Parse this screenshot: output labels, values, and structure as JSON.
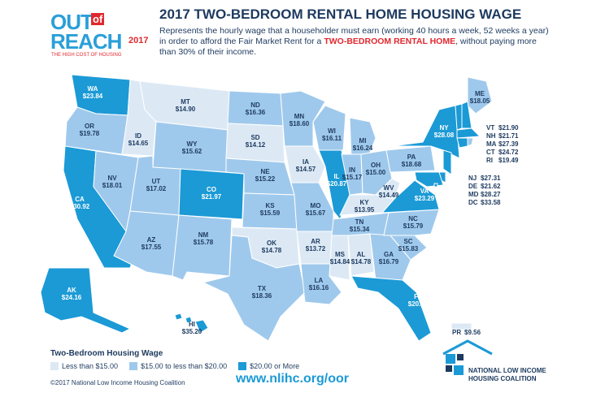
{
  "header": {
    "logo_out": "OUT",
    "logo_of": "of",
    "logo_reach": "REACH",
    "logo_year": "2017",
    "logo_tagline": "THE HIGH COST OF HOUSING",
    "title": "2017 TWO-BEDROOM RENTAL HOME HOUSING WAGE",
    "subtitle_start": "Represents the hourly wage that a householder must earn (working 40 hours a week, 52 weeks a year) in order to afford the Fair Market Rent for a ",
    "subtitle_emphasis": "TWO-BEDROOM RENTAL HOME",
    "subtitle_end": ", without paying more than 30% of their income."
  },
  "states": [
    {
      "abbr": "WA",
      "wage": "$23.84",
      "color": "#1b9ad6"
    },
    {
      "abbr": "OR",
      "wage": "$19.78",
      "color": "#9fc9ec"
    },
    {
      "abbr": "CA",
      "wage": "$30.92",
      "color": "#1b9ad6"
    },
    {
      "abbr": "NV",
      "wage": "$18.01",
      "color": "#9fc9ec"
    },
    {
      "abbr": "ID",
      "wage": "$14.65",
      "color": "#dce9f5"
    },
    {
      "abbr": "MT",
      "wage": "$14.90",
      "color": "#dce9f5"
    },
    {
      "abbr": "WY",
      "wage": "$15.62",
      "color": "#9fc9ec"
    },
    {
      "abbr": "UT",
      "wage": "$17.02",
      "color": "#9fc9ec"
    },
    {
      "abbr": "AZ",
      "wage": "$17.55",
      "color": "#9fc9ec"
    },
    {
      "abbr": "CO",
      "wage": "$21.97",
      "color": "#1b9ad6"
    },
    {
      "abbr": "NM",
      "wage": "$15.78",
      "color": "#9fc9ec"
    },
    {
      "abbr": "ND",
      "wage": "$16.36",
      "color": "#9fc9ec"
    },
    {
      "abbr": "SD",
      "wage": "$14.12",
      "color": "#dce9f5"
    },
    {
      "abbr": "NE",
      "wage": "$15.22",
      "color": "#9fc9ec"
    },
    {
      "abbr": "KS",
      "wage": "$15.59",
      "color": "#9fc9ec"
    },
    {
      "abbr": "OK",
      "wage": "$14.78",
      "color": "#dce9f5"
    },
    {
      "abbr": "TX",
      "wage": "$18.36",
      "color": "#9fc9ec"
    },
    {
      "abbr": "MN",
      "wage": "$18.60",
      "color": "#9fc9ec"
    },
    {
      "abbr": "IA",
      "wage": "$14.57",
      "color": "#dce9f5"
    },
    {
      "abbr": "MO",
      "wage": "$15.67",
      "color": "#9fc9ec"
    },
    {
      "abbr": "AR",
      "wage": "$13.72",
      "color": "#dce9f5"
    },
    {
      "abbr": "LA",
      "wage": "$16.16",
      "color": "#9fc9ec"
    },
    {
      "abbr": "WI",
      "wage": "$16.11",
      "color": "#9fc9ec"
    },
    {
      "abbr": "IL",
      "wage": "$20.87",
      "color": "#1b9ad6"
    },
    {
      "abbr": "MI",
      "wage": "$16.24",
      "color": "#9fc9ec"
    },
    {
      "abbr": "IN",
      "wage": "$15.17",
      "color": "#9fc9ec"
    },
    {
      "abbr": "OH",
      "wage": "$15.00",
      "color": "#9fc9ec"
    },
    {
      "abbr": "KY",
      "wage": "$13.95",
      "color": "#dce9f5"
    },
    {
      "abbr": "TN",
      "wage": "$15.34",
      "color": "#9fc9ec"
    },
    {
      "abbr": "MS",
      "wage": "$14.84",
      "color": "#dce9f5"
    },
    {
      "abbr": "AL",
      "wage": "$14.78",
      "color": "#dce9f5"
    },
    {
      "abbr": "GA",
      "wage": "$16.79",
      "color": "#9fc9ec"
    },
    {
      "abbr": "FL",
      "wage": "$20.68",
      "color": "#1b9ad6"
    },
    {
      "abbr": "SC",
      "wage": "$15.83",
      "color": "#9fc9ec"
    },
    {
      "abbr": "NC",
      "wage": "$15.79",
      "color": "#9fc9ec"
    },
    {
      "abbr": "VA",
      "wage": "$23.29",
      "color": "#1b9ad6"
    },
    {
      "abbr": "WV",
      "wage": "$14.49",
      "color": "#dce9f5"
    },
    {
      "abbr": "PA",
      "wage": "$18.68",
      "color": "#9fc9ec"
    },
    {
      "abbr": "NY",
      "wage": "$28.08",
      "color": "#1b9ad6"
    },
    {
      "abbr": "ME",
      "wage": "$18.05",
      "color": "#9fc9ec"
    },
    {
      "abbr": "VT",
      "wage": "$21.90",
      "color": "#1b9ad6"
    },
    {
      "abbr": "NH",
      "wage": "$21.71",
      "color": "#1b9ad6"
    },
    {
      "abbr": "MA",
      "wage": "$27.39",
      "color": "#1b9ad6"
    },
    {
      "abbr": "CT",
      "wage": "$24.72",
      "color": "#1b9ad6"
    },
    {
      "abbr": "RI",
      "wage": "$19.49",
      "color": "#9fc9ec"
    },
    {
      "abbr": "NJ",
      "wage": "$27.31",
      "color": "#1b9ad6"
    },
    {
      "abbr": "DE",
      "wage": "$21.62",
      "color": "#1b9ad6"
    },
    {
      "abbr": "MD",
      "wage": "$28.27",
      "color": "#1b9ad6"
    },
    {
      "abbr": "DC",
      "wage": "$33.58",
      "color": "#1b9ad6"
    },
    {
      "abbr": "AK",
      "wage": "$24.16",
      "color": "#1b9ad6"
    },
    {
      "abbr": "HI",
      "wage": "$35.20",
      "color": "#1b9ad6"
    },
    {
      "abbr": "PR",
      "wage": "$9.56",
      "color": "#dce9f5"
    }
  ],
  "legend": {
    "title": "Two-Bedroom Housing Wage",
    "items": [
      {
        "label": "Less than $15.00",
        "color": "#dce9f5"
      },
      {
        "label": "$15.00 to less than $20.00",
        "color": "#9fc9ec"
      },
      {
        "label": "$20.00 or More",
        "color": "#1b9ad6"
      }
    ]
  },
  "footer": {
    "copyright": "©2017 National Low Income Housing Coalition",
    "url": "www.nlihc.org/oor",
    "org_line1": "NATIONAL LOW INCOME",
    "org_line2": "HOUSING COALITION"
  }
}
